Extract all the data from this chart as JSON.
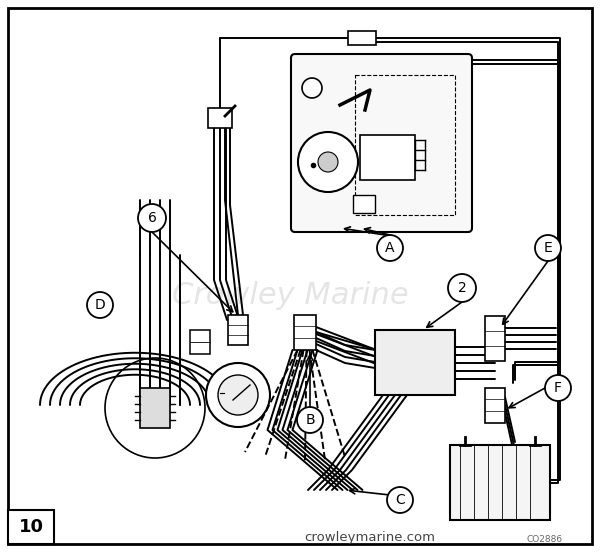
{
  "bg_color": "#ffffff",
  "line_color": "#000000",
  "fig_width": 6.0,
  "fig_height": 5.54,
  "dpi": 100,
  "watermark": "Crowley Marine",
  "footer_text": "crowleymarine.com",
  "footer_code": "CO2886",
  "box_number": "10"
}
